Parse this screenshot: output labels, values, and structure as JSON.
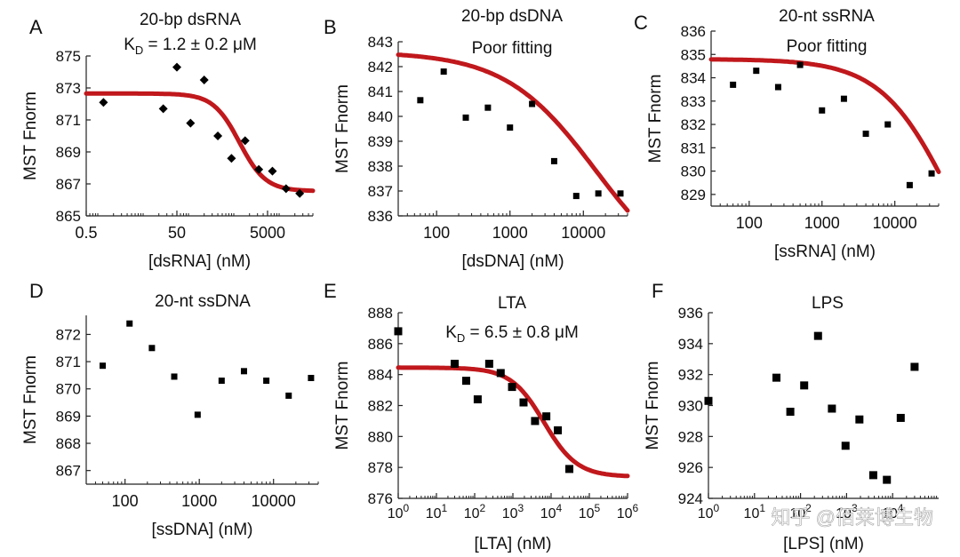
{
  "figure": {
    "watermark": "知乎 @佰莱博生物",
    "colors": {
      "fit": "#c0181c",
      "marker": "#000000",
      "axis": "#222222"
    }
  },
  "chart_data": [
    {
      "panel": "A",
      "type": "scatter",
      "marker": "diamond",
      "title_lines": [
        "20-bp dsRNA",
        "K_D = 1.2 ± 0.2 μM"
      ],
      "xlabel": "[dsRNA] (nM)",
      "ylabel": "MST Fnorm",
      "xscale": "log",
      "xlim": [
        0.5,
        50000
      ],
      "ylim": [
        865,
        875
      ],
      "xticks": [
        0.5,
        50,
        5000
      ],
      "xtick_labels": [
        "0.5",
        "50",
        "5000"
      ],
      "yticks": [
        865,
        867,
        869,
        871,
        873,
        875
      ],
      "x": [
        1.2,
        25,
        50,
        100,
        200,
        400,
        800,
        1600,
        3200,
        6400,
        12800,
        25600
      ],
      "y": [
        872.1,
        871.7,
        874.3,
        870.8,
        873.5,
        870.0,
        868.6,
        869.7,
        867.9,
        867.8,
        866.7,
        866.4
      ],
      "fit": {
        "model": "hill",
        "top": 872.65,
        "bottom": 866.55,
        "ec50": 1200,
        "hill": 1.5
      }
    },
    {
      "panel": "B",
      "type": "scatter",
      "marker": "square",
      "title_lines": [
        "20-bp dsDNA",
        "Poor fitting"
      ],
      "xlabel": "[dsDNA] (nM)",
      "ylabel": "MST Fnorm",
      "xscale": "log",
      "xlim": [
        30,
        40000
      ],
      "ylim": [
        836,
        843
      ],
      "xticks": [
        100,
        1000,
        10000
      ],
      "xtick_labels": [
        "100",
        "1000",
        "10000"
      ],
      "yticks": [
        836,
        837,
        838,
        839,
        840,
        841,
        842,
        843
      ],
      "x": [
        60,
        125,
        250,
        500,
        1000,
        2000,
        4000,
        8000,
        16000,
        32000
      ],
      "y": [
        840.65,
        841.8,
        839.95,
        840.35,
        839.55,
        840.5,
        838.2,
        836.8,
        836.9,
        836.9
      ],
      "fit": {
        "model": "hill",
        "top": 842.6,
        "bottom": 833.0,
        "ec50": 15000,
        "hill": 0.7
      }
    },
    {
      "panel": "C",
      "type": "scatter",
      "marker": "square",
      "title_lines": [
        "20-nt ssRNA",
        "Poor fitting"
      ],
      "xlabel": "[ssRNA] (nM)",
      "ylabel": "MST Fnorm",
      "xscale": "log",
      "xlim": [
        30,
        40000
      ],
      "ylim": [
        828.5,
        836
      ],
      "xticks": [
        100,
        1000,
        10000
      ],
      "xtick_labels": [
        "100",
        "1000",
        "10000"
      ],
      "yticks": [
        829,
        830,
        831,
        832,
        833,
        834,
        835,
        836
      ],
      "x": [
        60,
        125,
        250,
        500,
        1000,
        2000,
        4000,
        8000,
        16000,
        32000
      ],
      "y": [
        833.7,
        834.3,
        833.6,
        834.55,
        832.6,
        833.1,
        831.6,
        832.0,
        829.4,
        829.9
      ],
      "fit": {
        "model": "hill",
        "top": 834.8,
        "bottom": 823.0,
        "ec50": 60000,
        "hill": 0.9
      }
    },
    {
      "panel": "D",
      "type": "scatter",
      "marker": "square",
      "title_lines": [
        "20-nt ssDNA"
      ],
      "xlabel": "[ssDNA] (nM)",
      "ylabel": "MST Fnorm",
      "xscale": "log",
      "xlim": [
        30,
        40000
      ],
      "ylim": [
        866.5,
        872.7
      ],
      "xticks": [
        100,
        1000,
        10000
      ],
      "xtick_labels": [
        "100",
        "1000",
        "10000"
      ],
      "yticks": [
        867,
        868,
        869,
        870,
        871,
        872
      ],
      "x": [
        50,
        115,
        230,
        460,
        950,
        2000,
        4000,
        8000,
        16000,
        32000
      ],
      "y": [
        870.85,
        872.4,
        871.5,
        870.45,
        869.05,
        870.3,
        870.65,
        870.3,
        869.75,
        870.4
      ]
    },
    {
      "panel": "E",
      "type": "scatter",
      "marker": "square",
      "title_lines": [
        "LTA",
        "K_D = 6.5 ± 0.8 μM"
      ],
      "xlabel": "[LTA] (nM)",
      "ylabel": "MST Fnorm",
      "xscale": "log",
      "xlim": [
        1,
        1000000
      ],
      "ylim": [
        876,
        888
      ],
      "xticks": [
        1,
        10,
        100,
        1000,
        10000,
        100000,
        1000000
      ],
      "xtick_labels": [
        "10|0",
        "10|1",
        "10|2",
        "10|3",
        "10|4",
        "10|5",
        "10|6"
      ],
      "yticks": [
        876,
        878,
        880,
        882,
        884,
        886,
        888
      ],
      "x": [
        1,
        30,
        60,
        120,
        240,
        480,
        950,
        1900,
        3800,
        7500,
        15000,
        30000
      ],
      "y": [
        886.8,
        884.7,
        883.6,
        882.4,
        884.7,
        884.1,
        883.2,
        882.2,
        881.0,
        881.3,
        880.4,
        877.9
      ],
      "fit": {
        "model": "hill",
        "top": 884.45,
        "bottom": 877.4,
        "ec50": 6500,
        "hill": 1.0
      }
    },
    {
      "panel": "F",
      "type": "scatter",
      "marker": "square",
      "title_lines": [
        "LPS"
      ],
      "xlabel": "[LPS] (nM)",
      "ylabel": "MST Fnorm",
      "xscale": "log",
      "xlim": [
        1,
        100000
      ],
      "ylim": [
        924,
        936
      ],
      "xticks": [
        1,
        10,
        100,
        1000,
        10000
      ],
      "xtick_labels": [
        "10|0",
        "10|1",
        "10|2",
        "10|3",
        "10|4"
      ],
      "yticks": [
        924,
        926,
        928,
        930,
        932,
        934,
        936
      ],
      "x": [
        1,
        30,
        60,
        120,
        240,
        480,
        950,
        1900,
        3800,
        7500,
        15000,
        30000
      ],
      "y": [
        930.3,
        931.8,
        929.6,
        931.3,
        934.5,
        929.8,
        927.4,
        929.1,
        925.5,
        925.2,
        929.2,
        932.5
      ]
    }
  ]
}
